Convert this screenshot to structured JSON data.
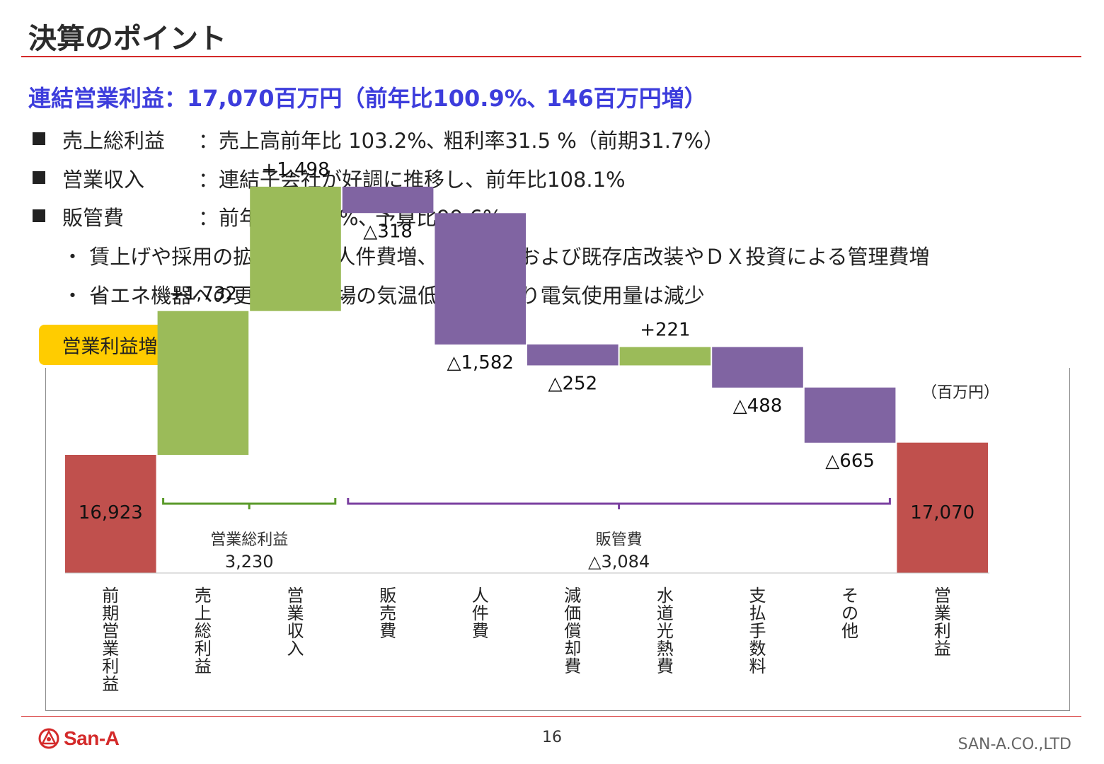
{
  "slide": {
    "title": "決算のポイント",
    "headline": "連結営業利益：17,070百万円（前年比100.9%､ 146百万円増）",
    "bullets": [
      {
        "label": "売上総利益",
        "text": "：売上高前年比 103.2%､ 粗利率31.5 %（前期31.7%）"
      },
      {
        "label": "営業収入",
        "text": "：連結子会社が好調に推移し、前年比108.1%"
      },
      {
        "label": "販管費",
        "text": "：前年比104.4%､ 予算比99.6%"
      }
    ],
    "sub_bullets": [
      "・ 賃上げや採用の拡大による人件費増、新規出店および既存店改装やＤＸ投資による管理費増",
      "・ 省エネ機器への更新及び夏場の気温低下等により電気使用量は減少"
    ],
    "badge": "営業利益増減",
    "page_number": "16",
    "company": "SAN-A.CO.,LTD",
    "logo_text": "San-A"
  },
  "chart_data": {
    "type": "waterfall",
    "unit": "（百万円）",
    "categories": [
      "前期営業利益",
      "売上総利益",
      "営業収入",
      "販売費",
      "人件費",
      "減価償却費",
      "水道光熱費",
      "支払手数料",
      "その他",
      "営業利益"
    ],
    "values": [
      16923,
      1732,
      1498,
      -318,
      -1582,
      -252,
      221,
      -488,
      -665,
      17070
    ],
    "value_labels": [
      "16,923",
      "+1,732",
      "+1,498",
      "△318",
      "△1,582",
      "△252",
      "+221",
      "△488",
      "△665",
      "17,070"
    ],
    "groups": [
      {
        "name": "営業総利益",
        "value": "3,230",
        "from": 1,
        "to": 2,
        "color": "#5a9a2a"
      },
      {
        "name": "販管費",
        "value": "△3,084",
        "from": 3,
        "to": 8,
        "color": "#7a3fa0"
      }
    ],
    "colors": {
      "total": "#c0504d",
      "increase": "#9bbb59",
      "decrease": "#8064a2"
    }
  }
}
